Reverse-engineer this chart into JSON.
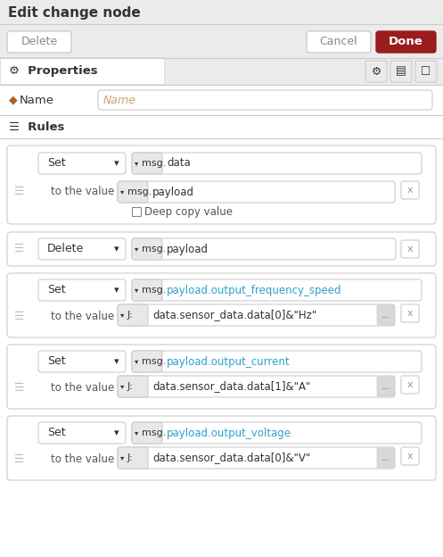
{
  "title": "Edit change node",
  "bg_color": "#ebebeb",
  "white": "#ffffff",
  "border_color": "#cccccc",
  "border_color2": "#dddddd",
  "text_dark": "#333333",
  "text_mid": "#555555",
  "text_gray": "#999999",
  "text_orange": "#c8a070",
  "text_blue": "#2fa0cc",
  "red_btn": "#9b1c1c",
  "cancel_text_color": "#888888",
  "delete_text_color": "#888888",
  "name_icon_color": "#b06020",
  "rules_icon_color": "#555555",
  "msg_bg": "#e8e8e8",
  "cancel_btn_text": "Cancel",
  "done_btn_text": "Done",
  "delete_btn_text": "Delete",
  "properties_text": "Properties",
  "name_label": "Name",
  "rules_label": "Rules",
  "name_placeholder": "Name",
  "to_the_value": "to the value"
}
